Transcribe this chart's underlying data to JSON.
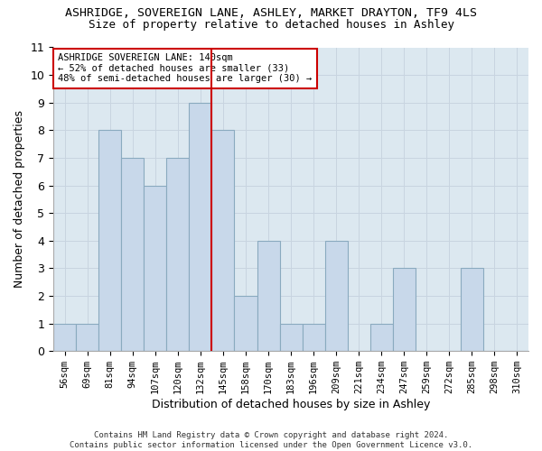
{
  "title_line1": "ASHRIDGE, SOVEREIGN LANE, ASHLEY, MARKET DRAYTON, TF9 4LS",
  "title_line2": "Size of property relative to detached houses in Ashley",
  "xlabel": "Distribution of detached houses by size in Ashley",
  "ylabel": "Number of detached properties",
  "categories": [
    "56sqm",
    "69sqm",
    "81sqm",
    "94sqm",
    "107sqm",
    "120sqm",
    "132sqm",
    "145sqm",
    "158sqm",
    "170sqm",
    "183sqm",
    "196sqm",
    "209sqm",
    "221sqm",
    "234sqm",
    "247sqm",
    "259sqm",
    "272sqm",
    "285sqm",
    "298sqm",
    "310sqm"
  ],
  "values": [
    1,
    1,
    8,
    7,
    6,
    7,
    9,
    8,
    2,
    4,
    1,
    1,
    4,
    0,
    1,
    3,
    0,
    0,
    3,
    0,
    0
  ],
  "bar_color": "#c8d8ea",
  "bar_edge_color": "#8aaabf",
  "vline_color": "#cc0000",
  "annotation_text": "ASHRIDGE SOVEREIGN LANE: 140sqm\n← 52% of detached houses are smaller (33)\n48% of semi-detached houses are larger (30) →",
  "annotation_box_color": "#ffffff",
  "annotation_box_edge_color": "#cc0000",
  "ylim": [
    0,
    11
  ],
  "yticks": [
    0,
    1,
    2,
    3,
    4,
    5,
    6,
    7,
    8,
    9,
    10,
    11
  ],
  "grid_color": "#c8d4e0",
  "plot_bg_color": "#dce8f0",
  "fig_bg_color": "#ffffff",
  "footer_line1": "Contains HM Land Registry data © Crown copyright and database right 2024.",
  "footer_line2": "Contains public sector information licensed under the Open Government Licence v3.0.",
  "title_fontsize": 9.5,
  "subtitle_fontsize": 9,
  "tick_fontsize": 7.5,
  "ylabel_fontsize": 9,
  "xlabel_fontsize": 9,
  "annotation_fontsize": 7.5,
  "footer_fontsize": 6.5
}
